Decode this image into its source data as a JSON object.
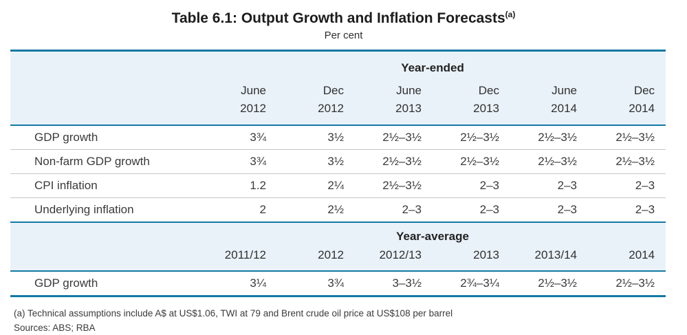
{
  "title": {
    "text": "Table 6.1: Output Growth and Inflation Forecasts",
    "footnote_marker": "(a)",
    "subtitle": "Per cent"
  },
  "table": {
    "section1": {
      "span_header": "Year-ended",
      "columns": [
        {
          "line1": "June",
          "line2": "2012"
        },
        {
          "line1": "Dec",
          "line2": "2012"
        },
        {
          "line1": "June",
          "line2": "2013"
        },
        {
          "line1": "Dec",
          "line2": "2013"
        },
        {
          "line1": "June",
          "line2": "2014"
        },
        {
          "line1": "Dec",
          "line2": "2014"
        }
      ],
      "rows": [
        {
          "label": "GDP growth",
          "values": [
            "3¾",
            "3½",
            "2½–3½",
            "2½–3½",
            "2½–3½",
            "2½–3½"
          ]
        },
        {
          "label": "Non-farm GDP growth",
          "values": [
            "3¾",
            "3½",
            "2½–3½",
            "2½–3½",
            "2½–3½",
            "2½–3½"
          ]
        },
        {
          "label": "CPI inflation",
          "values": [
            "1.2",
            "2¼",
            "2½–3½",
            "2–3",
            "2–3",
            "2–3"
          ]
        },
        {
          "label": "Underlying inflation",
          "values": [
            "2",
            "2½",
            "2–3",
            "2–3",
            "2–3",
            "2–3"
          ]
        }
      ]
    },
    "section2": {
      "span_header": "Year-average",
      "columns": [
        "2011/12",
        "2012",
        "2012/13",
        "2013",
        "2013/14",
        "2014"
      ],
      "rows": [
        {
          "label": "GDP growth",
          "values": [
            "3¼",
            "3¾",
            "3–3½",
            "2¾–3¼",
            "2½–3½",
            "2½–3½"
          ]
        }
      ]
    }
  },
  "footnotes": {
    "note_a": "(a) Technical assumptions include A$ at US$1.06, TWI at 79 and Brent crude oil price at US$108 per barrel",
    "sources": "Sources: ABS; RBA"
  },
  "colors": {
    "accent_teal": "#1379a3",
    "band_background": "#eaf2f9",
    "row_divider": "#c6c6c6",
    "text": "#3a3a3a"
  }
}
